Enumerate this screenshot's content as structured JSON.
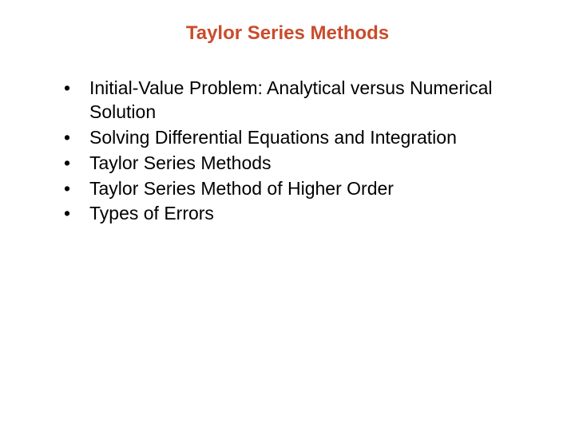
{
  "title": {
    "text": "Taylor Series Methods",
    "color": "#c94c2c",
    "fontsize": 24
  },
  "bullets": {
    "items": [
      "Initial-Value Problem: Analytical versus Numerical Solution",
      "Solving Differential Equations and Integration",
      "Taylor Series Methods",
      "Taylor Series Method of Higher Order",
      "Types of Errors"
    ],
    "color": "#000000",
    "fontsize": 23
  },
  "background_color": "#ffffff"
}
